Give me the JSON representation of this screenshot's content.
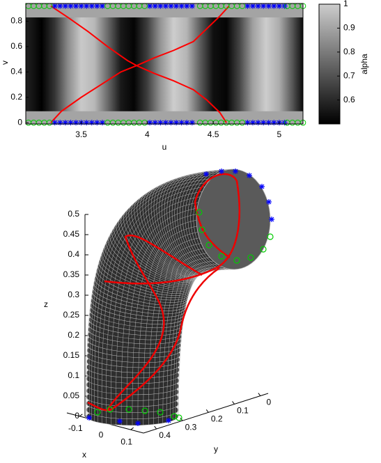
{
  "chart_data": [
    {
      "type": "image",
      "xlabel": "u",
      "ylabel": "v",
      "xlim": [
        3.08,
        5.18
      ],
      "ylim": [
        -0.01,
        0.94
      ],
      "xticks": [
        3.5,
        4,
        4.5,
        5
      ],
      "yticks": [
        0,
        0.2,
        0.4,
        0.6,
        0.8
      ],
      "colorbar": {
        "label": "alpha",
        "clim": [
          0.5,
          1
        ],
        "ticks": [
          0.6,
          0.7,
          0.8,
          0.9,
          1
        ]
      },
      "stripes": {
        "u": [
          3.1,
          3.2,
          3.3,
          3.4,
          3.5,
          3.6,
          3.7,
          3.8,
          3.9,
          4.0,
          4.1,
          4.2,
          4.3,
          4.4,
          4.5,
          4.6,
          4.7,
          4.8,
          4.9,
          5.0,
          5.1,
          5.2
        ],
        "alpha": [
          0.57,
          0.5,
          0.63,
          0.84,
          0.99,
          0.95,
          0.76,
          0.56,
          0.51,
          0.65,
          0.86,
          1.0,
          0.94,
          0.73,
          0.54,
          0.51,
          0.67,
          0.89,
          1.0,
          0.92,
          0.71,
          0.53
        ],
        "vlim": [
          0.09,
          0.83
        ],
        "band_alpha": 0.9
      },
      "curves": [
        {
          "color": "#ff0000",
          "u": [
            3.27,
            3.4,
            3.55,
            3.7,
            3.85,
            3.92,
            4.05,
            4.2,
            4.35,
            4.45,
            4.55,
            4.6
          ],
          "v": [
            0.92,
            0.83,
            0.72,
            0.6,
            0.49,
            0.45,
            0.39,
            0.33,
            0.26,
            0.18,
            0.08,
            0
          ]
        },
        {
          "color": "#ff0000",
          "u": [
            3.27,
            3.35,
            3.5,
            3.65,
            3.8,
            3.92,
            4.05,
            4.2,
            4.35,
            4.45,
            4.55,
            4.62
          ],
          "v": [
            0,
            0.09,
            0.2,
            0.3,
            0.4,
            0.45,
            0.51,
            0.57,
            0.64,
            0.74,
            0.84,
            0.92
          ]
        }
      ],
      "markers": {
        "rows_v": [
          0,
          0.92
        ],
        "groups": [
          {
            "marker": "star",
            "color": "#0000ff",
            "u": [
              3.3,
              3.34,
              3.38,
              3.42,
              3.46,
              3.5,
              3.54,
              3.58,
              3.62,
              3.66,
              4.02,
              4.06,
              4.1,
              4.14,
              4.18,
              4.22,
              4.26,
              4.3,
              4.34,
              4.76,
              4.8,
              4.84,
              4.88,
              4.92,
              4.96,
              5.0,
              5.04
            ]
          },
          {
            "marker": "circle",
            "color": "#00cc00",
            "u": [
              3.1,
              3.14,
              3.18,
              3.22,
              3.26,
              3.7,
              3.74,
              3.78,
              3.82,
              3.86,
              3.9,
              3.94,
              3.98,
              4.4,
              4.44,
              4.48,
              4.52,
              4.56,
              4.6,
              4.64,
              4.68,
              4.72,
              5.06,
              5.1,
              5.14,
              5.18
            ]
          }
        ]
      }
    },
    {
      "type": "surface3d",
      "xlabel": "x",
      "ylabel": "y",
      "zlabel": "z",
      "xlim": [
        -0.15,
        0.15
      ],
      "ylim": [
        0.45,
        -0.03
      ],
      "zlim": [
        0,
        0.5
      ],
      "xticks": [
        -0.1,
        0,
        0.1
      ],
      "yticks": [
        0.4,
        0.3,
        0.2,
        0.1,
        0
      ],
      "zticks": [
        0,
        0.05,
        0.1,
        0.15,
        0.2,
        0.25,
        0.3,
        0.35,
        0.4,
        0.45,
        0.5
      ]
    }
  ]
}
